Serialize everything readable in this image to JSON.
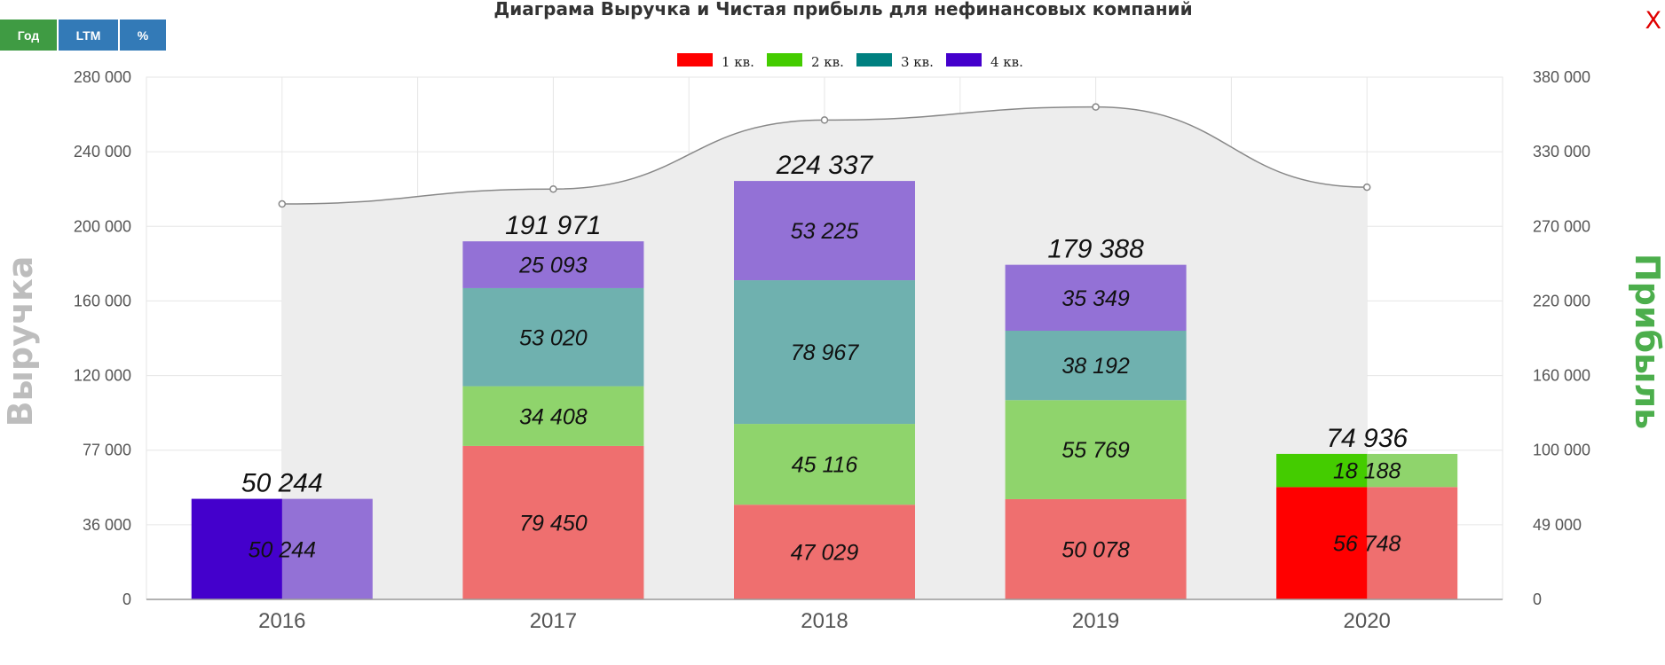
{
  "title": "Диаграма Выручка и Чистая прибыль для нефинансовых компаний",
  "toolbar": {
    "year_label": "Год",
    "ltm_label": "LTM",
    "pct_label": "%"
  },
  "close_glyph": "X",
  "chart_data": {
    "type": "bar",
    "stacked": true,
    "title": "Диаграма Выручка и Чистая прибыль для нефинансовых компаний",
    "categories": [
      "2016",
      "2017",
      "2018",
      "2019",
      "2020"
    ],
    "y_left": {
      "label": "Выручка",
      "ticks": [
        {
          "label": "0",
          "value": 0
        },
        {
          "label": "36 000",
          "value": 36000
        },
        {
          "label": "77 000",
          "value": 77000
        },
        {
          "label": "120 000",
          "value": 120000
        },
        {
          "label": "160 000",
          "value": 160000
        },
        {
          "label": "200 000",
          "value": 200000
        },
        {
          "label": "240 000",
          "value": 240000
        },
        {
          "label": "280 000",
          "value": 280000
        }
      ]
    },
    "y_right": {
      "label": "Прибыль",
      "ticks": [
        {
          "label": "0",
          "value": 0
        },
        {
          "label": "49 000",
          "value": 49000
        },
        {
          "label": "100 000",
          "value": 100000
        },
        {
          "label": "160 000",
          "value": 160000
        },
        {
          "label": "220 000",
          "value": 220000
        },
        {
          "label": "270 000",
          "value": 270000
        },
        {
          "label": "330 000",
          "value": 330000
        },
        {
          "label": "380 000",
          "value": 380000
        }
      ]
    },
    "legend": [
      {
        "name": "1 кв.",
        "color": "#ff0000"
      },
      {
        "name": "2 кв.",
        "color": "#44cc00"
      },
      {
        "name": "3 кв.",
        "color": "#008080"
      },
      {
        "name": "4 кв.",
        "color": "#4400cc"
      }
    ],
    "legend_position": "top-center",
    "series": [
      {
        "name": "1 кв.",
        "color": "#ef6f6f",
        "values": [
          null,
          79450,
          47029,
          50078,
          56748
        ],
        "labels": [
          "",
          "79 450",
          "47 029",
          "50 078",
          "56 748"
        ]
      },
      {
        "name": "2 кв.",
        "color": "#8fd46c",
        "values": [
          null,
          34408,
          45116,
          55769,
          18188
        ],
        "labels": [
          "",
          "34 408",
          "45 116",
          "55 769",
          "18 188"
        ]
      },
      {
        "name": "3 кв.",
        "color": "#6fb1af",
        "values": [
          null,
          53020,
          78967,
          38192,
          null
        ],
        "labels": [
          "",
          "53 020",
          "78 967",
          "38 192",
          ""
        ]
      },
      {
        "name": "4 кв.",
        "color": "#9371d6",
        "values": [
          50244,
          25093,
          53225,
          35349,
          null
        ],
        "labels": [
          "50 244",
          "25 093",
          "53 225",
          "35 349",
          ""
        ]
      }
    ],
    "totals": [
      "50 244",
      "191 971",
      "224 337",
      "179 388",
      "74 936"
    ],
    "highlight": [
      {
        "category": "2016",
        "series": "4 кв.",
        "value": 50244,
        "color": "#4400cc"
      },
      {
        "category": "2020",
        "series": "1 кв.",
        "value": 56748,
        "color": "#ff0000"
      },
      {
        "category": "2020",
        "series": "2 кв.",
        "value": 18188,
        "color": "#44cc00"
      }
    ],
    "area_line": {
      "axis": "left",
      "color": "#888888",
      "fill": "#ededed",
      "values": [
        212000,
        220000,
        257000,
        264000,
        221000
      ]
    },
    "grid": true
  }
}
